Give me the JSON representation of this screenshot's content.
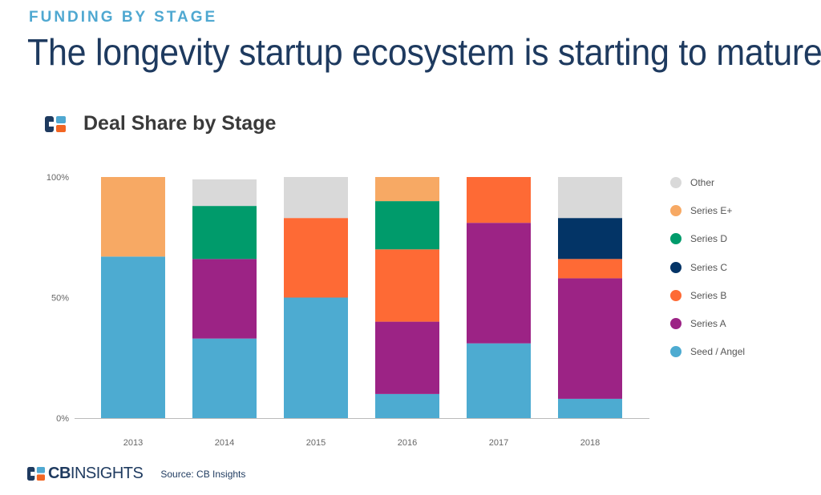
{
  "header": {
    "eyebrow": "FUNDING BY STAGE",
    "title": "The longevity startup ecosystem is starting to mature"
  },
  "chart_title": "Deal Share by Stage",
  "footer": {
    "brand_bold": "CB",
    "brand_rest": "INSIGHTS",
    "source": "Source: CB Insights"
  },
  "colors": {
    "Seed / Angel": "#4dabd1",
    "Series A": "#9c2385",
    "Series B": "#fe6a35",
    "Series C": "#033466",
    "Series D": "#009b6b",
    "Series E+": "#f7a964",
    "Other": "#d9d9d9"
  },
  "chart_data": {
    "type": "bar",
    "stacked": true,
    "title": "Deal Share by Stage",
    "categories": [
      "2013",
      "2014",
      "2015",
      "2016",
      "2017",
      "2018"
    ],
    "y_ticks": [
      "0%",
      "50%",
      "100%"
    ],
    "ylim": [
      0,
      100
    ],
    "legend_order": [
      "Other",
      "Series E+",
      "Series D",
      "Series C",
      "Series B",
      "Series A",
      "Seed / Angel"
    ],
    "series": [
      {
        "name": "Seed / Angel",
        "values": [
          67,
          33,
          50,
          10,
          31,
          8
        ]
      },
      {
        "name": "Series A",
        "values": [
          0,
          33,
          0,
          30,
          50,
          50
        ]
      },
      {
        "name": "Series B",
        "values": [
          0,
          0,
          33,
          30,
          19,
          8
        ]
      },
      {
        "name": "Series C",
        "values": [
          0,
          0,
          0,
          0,
          0,
          17
        ]
      },
      {
        "name": "Series D",
        "values": [
          0,
          22,
          0,
          20,
          0,
          0
        ]
      },
      {
        "name": "Series E+",
        "values": [
          33,
          0,
          0,
          10,
          0,
          0
        ]
      },
      {
        "name": "Other",
        "values": [
          0,
          11,
          17,
          0,
          0,
          17
        ]
      }
    ]
  }
}
